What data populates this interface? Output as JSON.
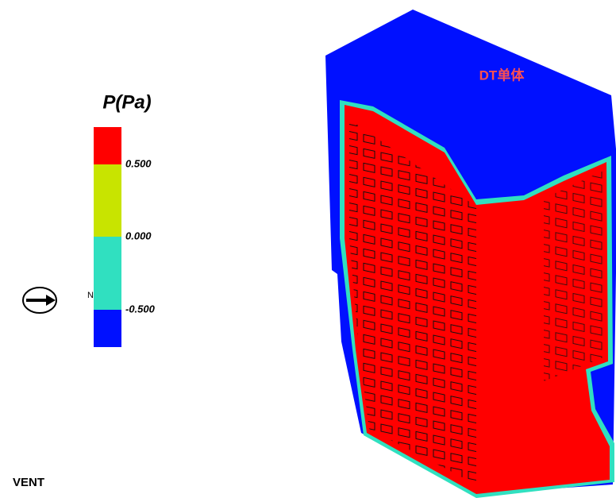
{
  "legend": {
    "title": "P(Pa)",
    "labels": [
      "0.500",
      "0.000",
      "-0.500"
    ],
    "colors": [
      "#ff0000",
      "#c8e400",
      "#30e0c0",
      "#0010ff"
    ]
  },
  "annotation": "DT单体",
  "compass": {
    "direction": "N",
    "label": "VENT"
  }
}
